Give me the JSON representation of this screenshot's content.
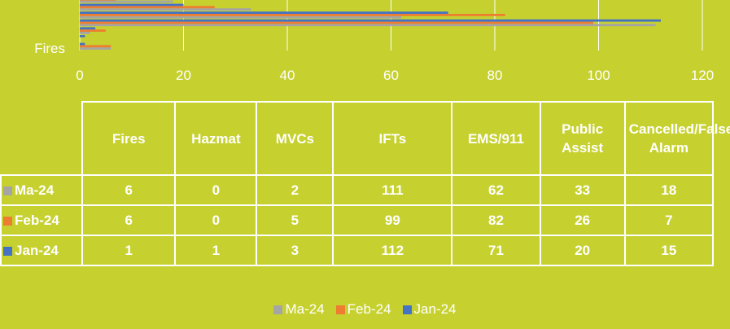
{
  "chart_data": {
    "type": "bar",
    "orientation": "horizontal",
    "categories": [
      "Fires",
      "Hazmat",
      "MVCs",
      "IFTs",
      "EMS/911",
      "Public Assist",
      "Cancelled/False Alarm"
    ],
    "series": [
      {
        "name": "Ma-24",
        "color": "#a5a5a5",
        "values": [
          6,
          0,
          2,
          111,
          62,
          33,
          18
        ]
      },
      {
        "name": "Feb-24",
        "color": "#ed7d31",
        "values": [
          6,
          0,
          5,
          99,
          82,
          26,
          7
        ]
      },
      {
        "name": "Jan-24",
        "color": "#4472c4",
        "values": [
          1,
          1,
          3,
          112,
          71,
          20,
          15
        ]
      }
    ],
    "xlim": [
      0,
      120
    ],
    "xticks": [
      0,
      20,
      40,
      60,
      80,
      100,
      120
    ],
    "grid": true,
    "legend": "bottom"
  }
}
